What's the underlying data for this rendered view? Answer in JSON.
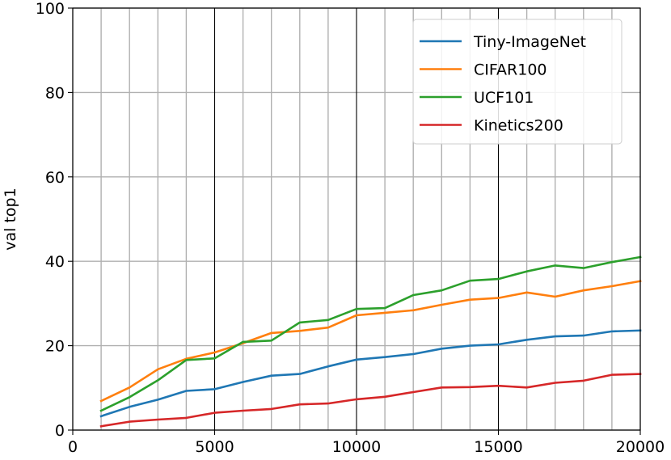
{
  "chart_data": {
    "type": "line",
    "title": "",
    "xlabel": "",
    "ylabel": "val top1",
    "xlim": [
      0,
      20000
    ],
    "ylim": [
      0,
      100
    ],
    "x_ticks": [
      0,
      5000,
      10000,
      15000,
      20000
    ],
    "y_ticks": [
      0,
      20,
      40,
      60,
      80,
      100
    ],
    "x_tick_labels": [
      "0",
      "5000",
      "10000",
      "15000",
      "20000"
    ],
    "y_tick_labels": [
      "0",
      "20",
      "40",
      "60",
      "80",
      "100"
    ],
    "grid": true,
    "minor_x_grid_step": 1000,
    "legend_position": "top-right",
    "x": [
      1000,
      2000,
      3000,
      4000,
      5000,
      6000,
      7000,
      8000,
      9000,
      10000,
      11000,
      12000,
      13000,
      14000,
      15000,
      16000,
      17000,
      18000,
      19000,
      20000
    ],
    "series": [
      {
        "name": "Tiny-ImageNet",
        "color": "#1f77b4",
        "values": [
          3.3,
          5.5,
          7.2,
          9.3,
          9.7,
          11.4,
          12.9,
          13.3,
          15.1,
          16.7,
          17.3,
          18.0,
          19.3,
          20.0,
          20.3,
          21.4,
          22.2,
          22.4,
          23.4,
          23.6
        ]
      },
      {
        "name": "CIFAR100",
        "color": "#ff7f0e",
        "values": [
          6.9,
          10.1,
          14.4,
          16.9,
          18.4,
          20.6,
          23.0,
          23.5,
          24.3,
          27.2,
          27.8,
          28.4,
          29.7,
          30.9,
          31.3,
          32.6,
          31.6,
          33.1,
          34.1,
          35.3
        ]
      },
      {
        "name": "UCF101",
        "color": "#2ca02c",
        "values": [
          4.6,
          7.8,
          11.8,
          16.6,
          17.0,
          20.9,
          21.2,
          25.5,
          26.1,
          28.7,
          28.9,
          32.0,
          33.1,
          35.4,
          35.8,
          37.6,
          39.0,
          38.4,
          39.8,
          41.0
        ]
      },
      {
        "name": "Kinetics200",
        "color": "#d62728",
        "values": [
          0.9,
          2.0,
          2.5,
          2.9,
          4.1,
          4.6,
          5.0,
          6.1,
          6.3,
          7.3,
          7.9,
          9.0,
          10.1,
          10.2,
          10.5,
          10.1,
          11.2,
          11.7,
          13.1,
          13.3
        ]
      }
    ]
  }
}
